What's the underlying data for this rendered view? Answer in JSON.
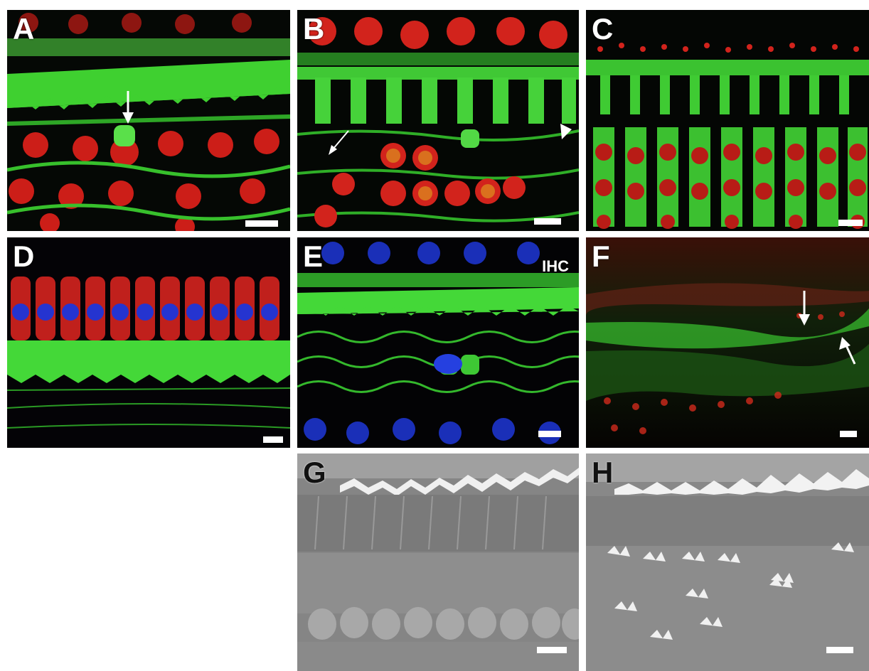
{
  "figure": {
    "panels": [
      {
        "id": "A",
        "label": "A"
      },
      {
        "id": "B",
        "label": "B"
      },
      {
        "id": "C",
        "label": "C"
      },
      {
        "id": "D",
        "label": "D"
      },
      {
        "id": "E",
        "label": "E",
        "sublabel": "IHC"
      },
      {
        "id": "F",
        "label": "F"
      },
      {
        "id": "G",
        "label": "G"
      },
      {
        "id": "H",
        "label": "H"
      }
    ]
  },
  "colors": {
    "green": "#34d12a",
    "red": "#d8201a",
    "blue": "#1a2fd0",
    "yellow": "#e0b020",
    "sem_bg": "#8a8a8a"
  }
}
